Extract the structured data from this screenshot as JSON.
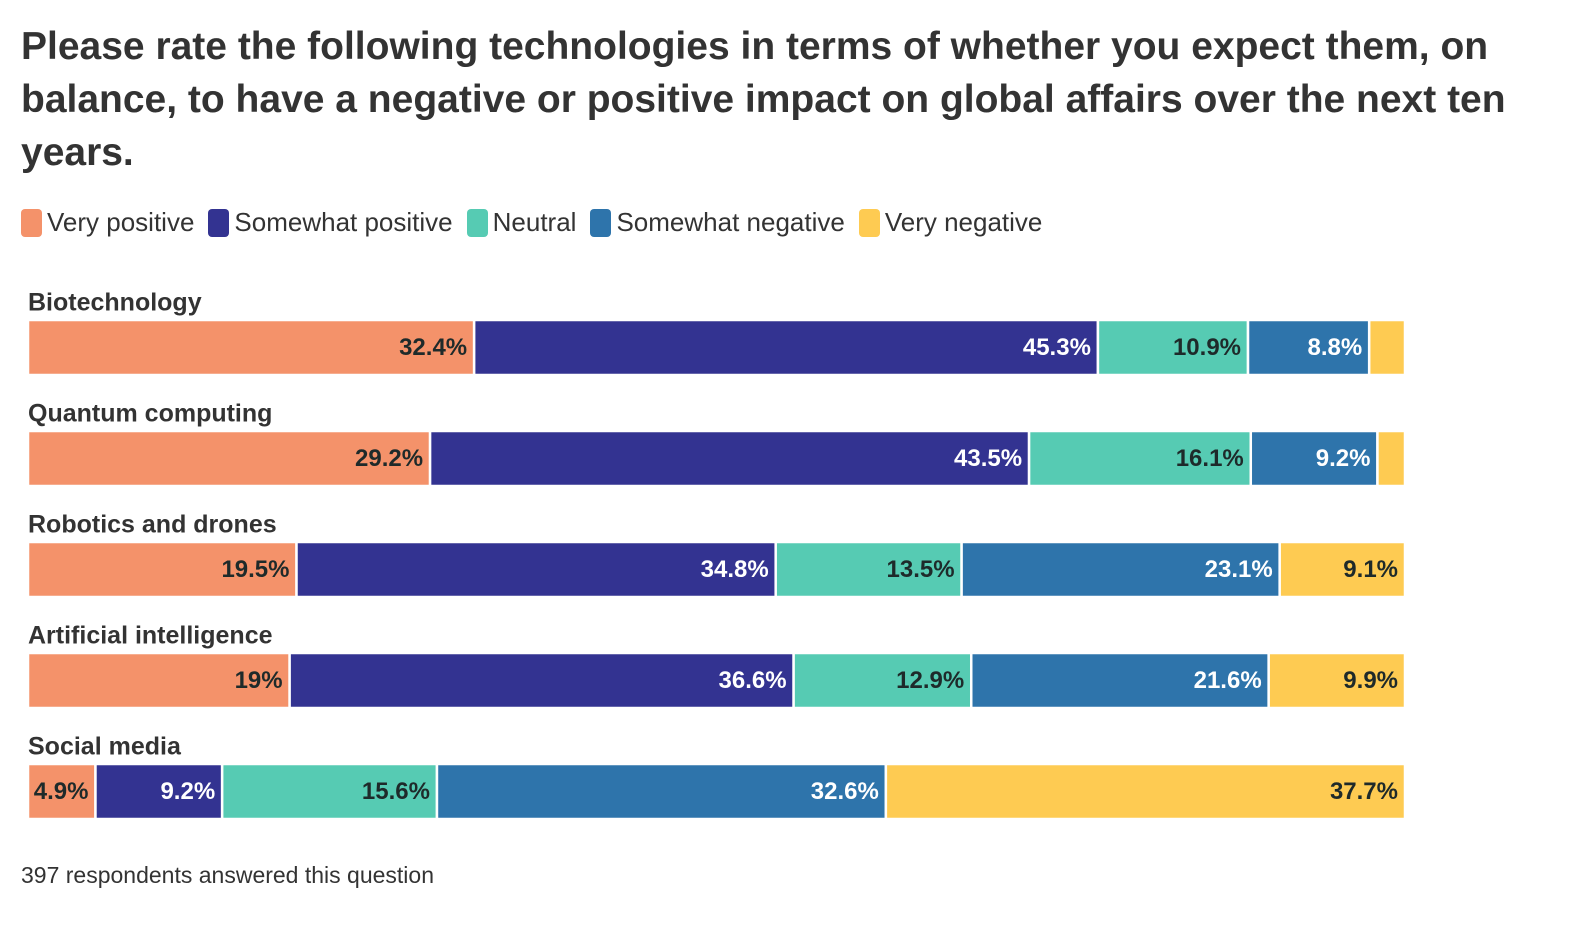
{
  "chart_data": {
    "type": "bar",
    "orientation": "horizontal",
    "stacked": true,
    "title": "Please rate the following technologies in terms of whether you expect them, on balance, to have a negative or positive impact on global affairs over the next ten years.",
    "categories": [
      "Biotechnology",
      "Quantum computing",
      "Robotics and drones",
      "Artificial intelligence",
      "Social media"
    ],
    "series": [
      {
        "name": "Very positive",
        "color": "#f4926a",
        "values": [
          32.4,
          29.2,
          19.5,
          19,
          4.9
        ],
        "value_labels": [
          "32.4%",
          "29.2%",
          "19.5%",
          "19%",
          "4.9%"
        ]
      },
      {
        "name": "Somewhat positive",
        "color": "#333391",
        "values": [
          45.3,
          43.5,
          34.8,
          36.6,
          9.2
        ],
        "value_labels": [
          "45.3%",
          "43.5%",
          "34.8%",
          "36.6%",
          "9.2%"
        ]
      },
      {
        "name": "Neutral",
        "color": "#56cbb3",
        "values": [
          10.9,
          16.1,
          13.5,
          12.9,
          15.6
        ],
        "value_labels": [
          "10.9%",
          "16.1%",
          "13.5%",
          "12.9%",
          "15.6%"
        ]
      },
      {
        "name": "Somewhat negative",
        "color": "#2e74ab",
        "values": [
          8.8,
          9.2,
          23.1,
          21.6,
          32.6
        ],
        "value_labels": [
          "8.8%",
          "9.2%",
          "23.1%",
          "21.6%",
          "32.6%"
        ]
      },
      {
        "name": "Very negative",
        "color": "#fecb52",
        "values": [
          2.6,
          2.0,
          9.1,
          9.9,
          37.7
        ],
        "value_labels": [
          null,
          null,
          "9.1%",
          "9.9%",
          "37.7%"
        ]
      }
    ],
    "footnote": "397 respondents answered this question"
  }
}
